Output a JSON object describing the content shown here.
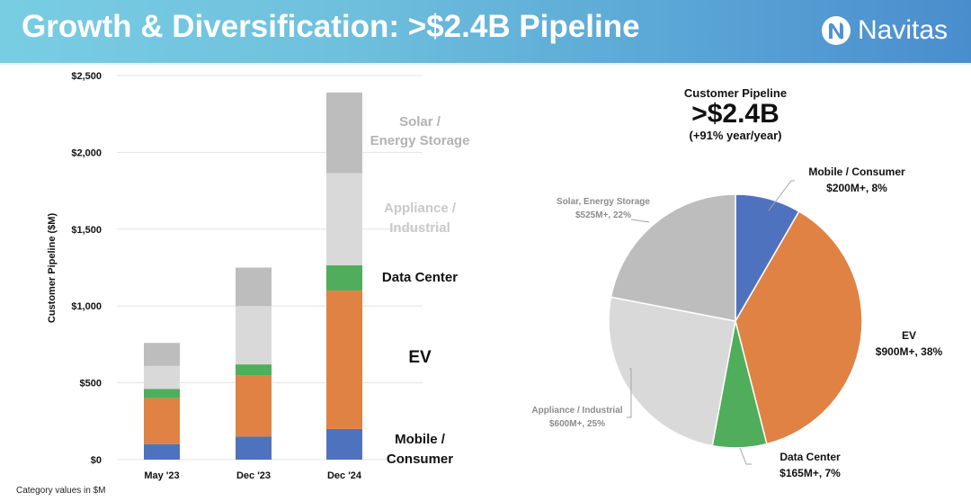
{
  "header": {
    "title": "Growth & Diversification: >$2.4B Pipeline",
    "brand": "Navitas",
    "logo_icon": "navitas-n-logo-icon"
  },
  "colors": {
    "mobile_consumer": "#4f72be",
    "ev": "#df8243",
    "data_center": "#50ad5c",
    "appliance_industrial": "#d9d9d9",
    "solar_energy_storage": "#bdbdbd",
    "header_start": "#79cde3",
    "header_end": "#4a8dcd"
  },
  "footnote": "Category values in $M",
  "chart_data": [
    {
      "type": "bar",
      "stacked": true,
      "title": "",
      "xlabel": "",
      "ylabel": "Customer Pipeline ($M)",
      "ylim": [
        0,
        2500
      ],
      "yticks": [
        0,
        500,
        1000,
        1500,
        2000,
        2500
      ],
      "ytick_labels": [
        "$0",
        "$500",
        "$1,000",
        "$1,500",
        "$2,000",
        "$2,500"
      ],
      "grid": true,
      "categories": [
        "May '23",
        "Dec '23",
        "Dec '24"
      ],
      "series": [
        {
          "name": "Mobile / Consumer",
          "label_lines": [
            "Mobile /",
            "Consumer"
          ],
          "color_key": "mobile_consumer",
          "values": [
            100,
            150,
            200
          ]
        },
        {
          "name": "EV",
          "label_lines": [
            "EV"
          ],
          "color_key": "ev",
          "values": [
            300,
            400,
            900
          ]
        },
        {
          "name": "Data Center",
          "label_lines": [
            "Data Center"
          ],
          "color_key": "data_center",
          "values": [
            60,
            70,
            165
          ]
        },
        {
          "name": "Appliance / Industrial",
          "label_lines": [
            "Appliance /",
            "Industrial"
          ],
          "color_key": "appliance_industrial",
          "values": [
            150,
            380,
            600
          ]
        },
        {
          "name": "Solar / Energy Storage",
          "label_lines": [
            "Solar /",
            "Energy Storage"
          ],
          "color_key": "solar_energy_storage",
          "values": [
            150,
            250,
            525
          ]
        }
      ],
      "legend": "right (inline labels beside last bar)"
    },
    {
      "type": "pie",
      "title": "Customer Pipeline",
      "headline": ">$2.4B",
      "subtitle": "(+91% year/year)",
      "slices": [
        {
          "name": "Mobile / Consumer",
          "value_label": "$200M+, 8%",
          "value": 200,
          "percent": 8,
          "color_key": "mobile_consumer",
          "label_style": "dark"
        },
        {
          "name": "EV",
          "value_label": "$900M+, 38%",
          "value": 900,
          "percent": 38,
          "color_key": "ev",
          "label_style": "dark"
        },
        {
          "name": "Data Center",
          "value_label": "$165M+, 7%",
          "value": 165,
          "percent": 7,
          "color_key": "data_center",
          "label_style": "dark"
        },
        {
          "name": "Appliance / Industrial",
          "value_label": "$600M+, 25%",
          "value": 600,
          "percent": 25,
          "color_key": "appliance_industrial",
          "label_style": "gray"
        },
        {
          "name": "Solar, Energy Storage",
          "value_label": "$525M+, 22%",
          "value": 525,
          "percent": 22,
          "color_key": "solar_energy_storage",
          "label_style": "gray"
        }
      ]
    }
  ]
}
